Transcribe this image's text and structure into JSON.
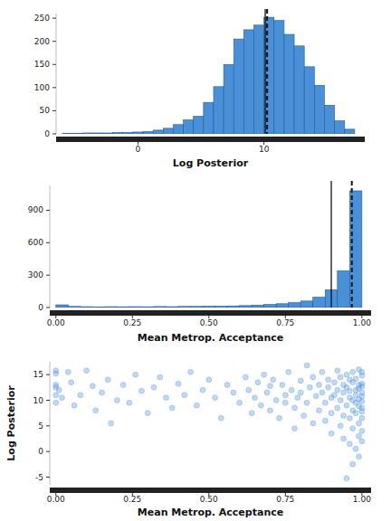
{
  "chart_data": [
    {
      "type": "histogram",
      "x_label": "Log Posterior",
      "color": "#4a90d9",
      "bins": [
        -6,
        -5.2,
        -4.4,
        -3.6,
        -2.8,
        -2,
        -1.2,
        -0.4,
        0.4,
        1.2,
        2,
        2.8,
        3.6,
        4.4,
        5.2,
        6,
        6.8,
        7.6,
        8.4,
        9.2,
        10,
        10.8,
        11.6,
        12.4,
        13.2,
        14,
        14.8,
        15.6,
        16.4,
        17.2
      ],
      "values": [
        1,
        1,
        2,
        2,
        2,
        3,
        3,
        4,
        5,
        8,
        12,
        20,
        30,
        38,
        68,
        102,
        150,
        205,
        225,
        235,
        252,
        245,
        215,
        190,
        145,
        105,
        62,
        28,
        10
      ],
      "xlim": [
        -6.5,
        18
      ],
      "ylim": [
        0,
        260
      ],
      "xticks": [
        0,
        10
      ],
      "yticks": [
        0,
        50,
        100,
        150,
        200,
        250
      ],
      "reference_lines": [
        {
          "value": 10.1,
          "line_style": "solid"
        },
        {
          "value": 10.25,
          "line_style": "dashed"
        }
      ]
    },
    {
      "type": "histogram",
      "x_label": "Mean Metrop. Acceptance",
      "color": "#4a90d9",
      "bins": [
        0,
        0.04,
        0.08,
        0.12,
        0.16,
        0.2,
        0.24,
        0.28,
        0.32,
        0.36,
        0.4,
        0.44,
        0.48,
        0.52,
        0.56,
        0.6,
        0.64,
        0.68,
        0.72,
        0.76,
        0.8,
        0.84,
        0.88,
        0.92,
        0.96,
        1
      ],
      "values": [
        25,
        10,
        8,
        6,
        8,
        7,
        8,
        7,
        9,
        8,
        10,
        10,
        12,
        12,
        15,
        18,
        22,
        28,
        35,
        45,
        60,
        95,
        165,
        340,
        1080
      ],
      "xlim": [
        -0.02,
        1.03
      ],
      "ylim": [
        0,
        1130
      ],
      "xticks": [
        {
          "value": 0,
          "label": "0.00"
        },
        {
          "value": 0.25,
          "label": "0.25"
        },
        {
          "value": 0.5,
          "label": "0.50"
        },
        {
          "value": 0.75,
          "label": "0.75"
        },
        {
          "value": 1,
          "label": "1.00"
        }
      ],
      "yticks": [
        0,
        300,
        600,
        900
      ],
      "reference_lines": [
        {
          "value": 0.9,
          "line_style": "solid"
        },
        {
          "value": 0.967,
          "line_style": "dashed"
        }
      ]
    },
    {
      "type": "scatter",
      "x_label": "Mean Metrop. Acceptance",
      "y_label": "Log Posterior",
      "color": "#4a90e2",
      "x": [
        0,
        0,
        0,
        0,
        0,
        0,
        0.01,
        0.02,
        0.04,
        0.05,
        0.06,
        0.08,
        0.1,
        0.12,
        0.13,
        0.15,
        0.17,
        0.18,
        0.2,
        0.22,
        0.24,
        0.26,
        0.28,
        0.3,
        0.32,
        0.34,
        0.36,
        0.38,
        0.4,
        0.42,
        0.44,
        0.46,
        0.48,
        0.5,
        0.52,
        0.54,
        0.56,
        0.58,
        0.6,
        0.62,
        0.63,
        0.64,
        0.65,
        0.66,
        0.67,
        0.68,
        0.69,
        0.7,
        0.7,
        0.71,
        0.72,
        0.73,
        0.74,
        0.75,
        0.75,
        0.76,
        0.77,
        0.78,
        0.78,
        0.79,
        0.8,
        0.8,
        0.81,
        0.82,
        0.82,
        0.83,
        0.84,
        0.84,
        0.85,
        0.86,
        0.86,
        0.87,
        0.87,
        0.88,
        0.88,
        0.89,
        0.89,
        0.9,
        0.9,
        0.9,
        0.91,
        0.91,
        0.92,
        0.92,
        0.92,
        0.93,
        0.93,
        0.93,
        0.94,
        0.94,
        0.94,
        0.94,
        0.95,
        0.95,
        0.95,
        0.95,
        0.96,
        0.96,
        0.96,
        0.96,
        0.96,
        0.97,
        0.97,
        0.97,
        0.97,
        0.97,
        0.98,
        0.98,
        0.98,
        0.98,
        0.98,
        0.98,
        0.99,
        0.99,
        0.99,
        0.99,
        0.99,
        0.99,
        0.99,
        1,
        1,
        1,
        1,
        1,
        1,
        1,
        1,
        1,
        1,
        1,
        1,
        0.99,
        0.97
      ],
      "values": [
        15.8,
        15.2,
        13,
        12.5,
        11,
        9.5,
        12,
        10.5,
        15.5,
        13.5,
        9,
        11,
        15.8,
        12.8,
        8,
        11.5,
        14,
        5.5,
        10,
        13,
        9.5,
        15,
        11.8,
        7.5,
        12.5,
        14.5,
        10.5,
        8.5,
        13.2,
        11,
        15.5,
        9,
        12,
        14,
        10.5,
        6.5,
        13,
        11.5,
        9.5,
        14.5,
        12,
        7.5,
        10.5,
        13.5,
        9,
        15,
        11.5,
        8,
        12.8,
        14,
        10,
        6.5,
        13,
        11,
        9.5,
        15.5,
        12,
        8.5,
        4.5,
        10.5,
        13.8,
        11.5,
        7,
        16.8,
        9.5,
        12.5,
        14.5,
        5.5,
        10.8,
        13,
        8,
        11.5,
        15.5,
        9.5,
        6,
        12.5,
        14,
        10.5,
        7.5,
        3.5,
        13.5,
        11,
        15.8,
        8.5,
        12,
        5,
        10,
        14.5,
        11.5,
        7,
        2.5,
        13,
        9,
        15,
        12.5,
        -5.2,
        10.5,
        6.5,
        14,
        1.5,
        11.8,
        8,
        13.5,
        4.5,
        10,
        15.5,
        12,
        7.5,
        9.5,
        0.5,
        14.2,
        11,
        5.5,
        13,
        8.8,
        16,
        10.2,
        3,
        12.3,
        6.5,
        9.8,
        14.8,
        11.5,
        7.8,
        13.2,
        4,
        10.8,
        15.5,
        8.5,
        12.7,
        2,
        -1,
        -2.5
      ],
      "xlim": [
        -0.02,
        1.03
      ],
      "ylim": [
        -6.5,
        17.5
      ],
      "xticks": [
        {
          "value": 0,
          "label": "0.00"
        },
        {
          "value": 0.25,
          "label": "0.25"
        },
        {
          "value": 0.5,
          "label": "0.50"
        },
        {
          "value": 0.75,
          "label": "0.75"
        },
        {
          "value": 1,
          "label": "1.00"
        }
      ],
      "yticks": [
        -5,
        0,
        5,
        10,
        15
      ]
    }
  ]
}
